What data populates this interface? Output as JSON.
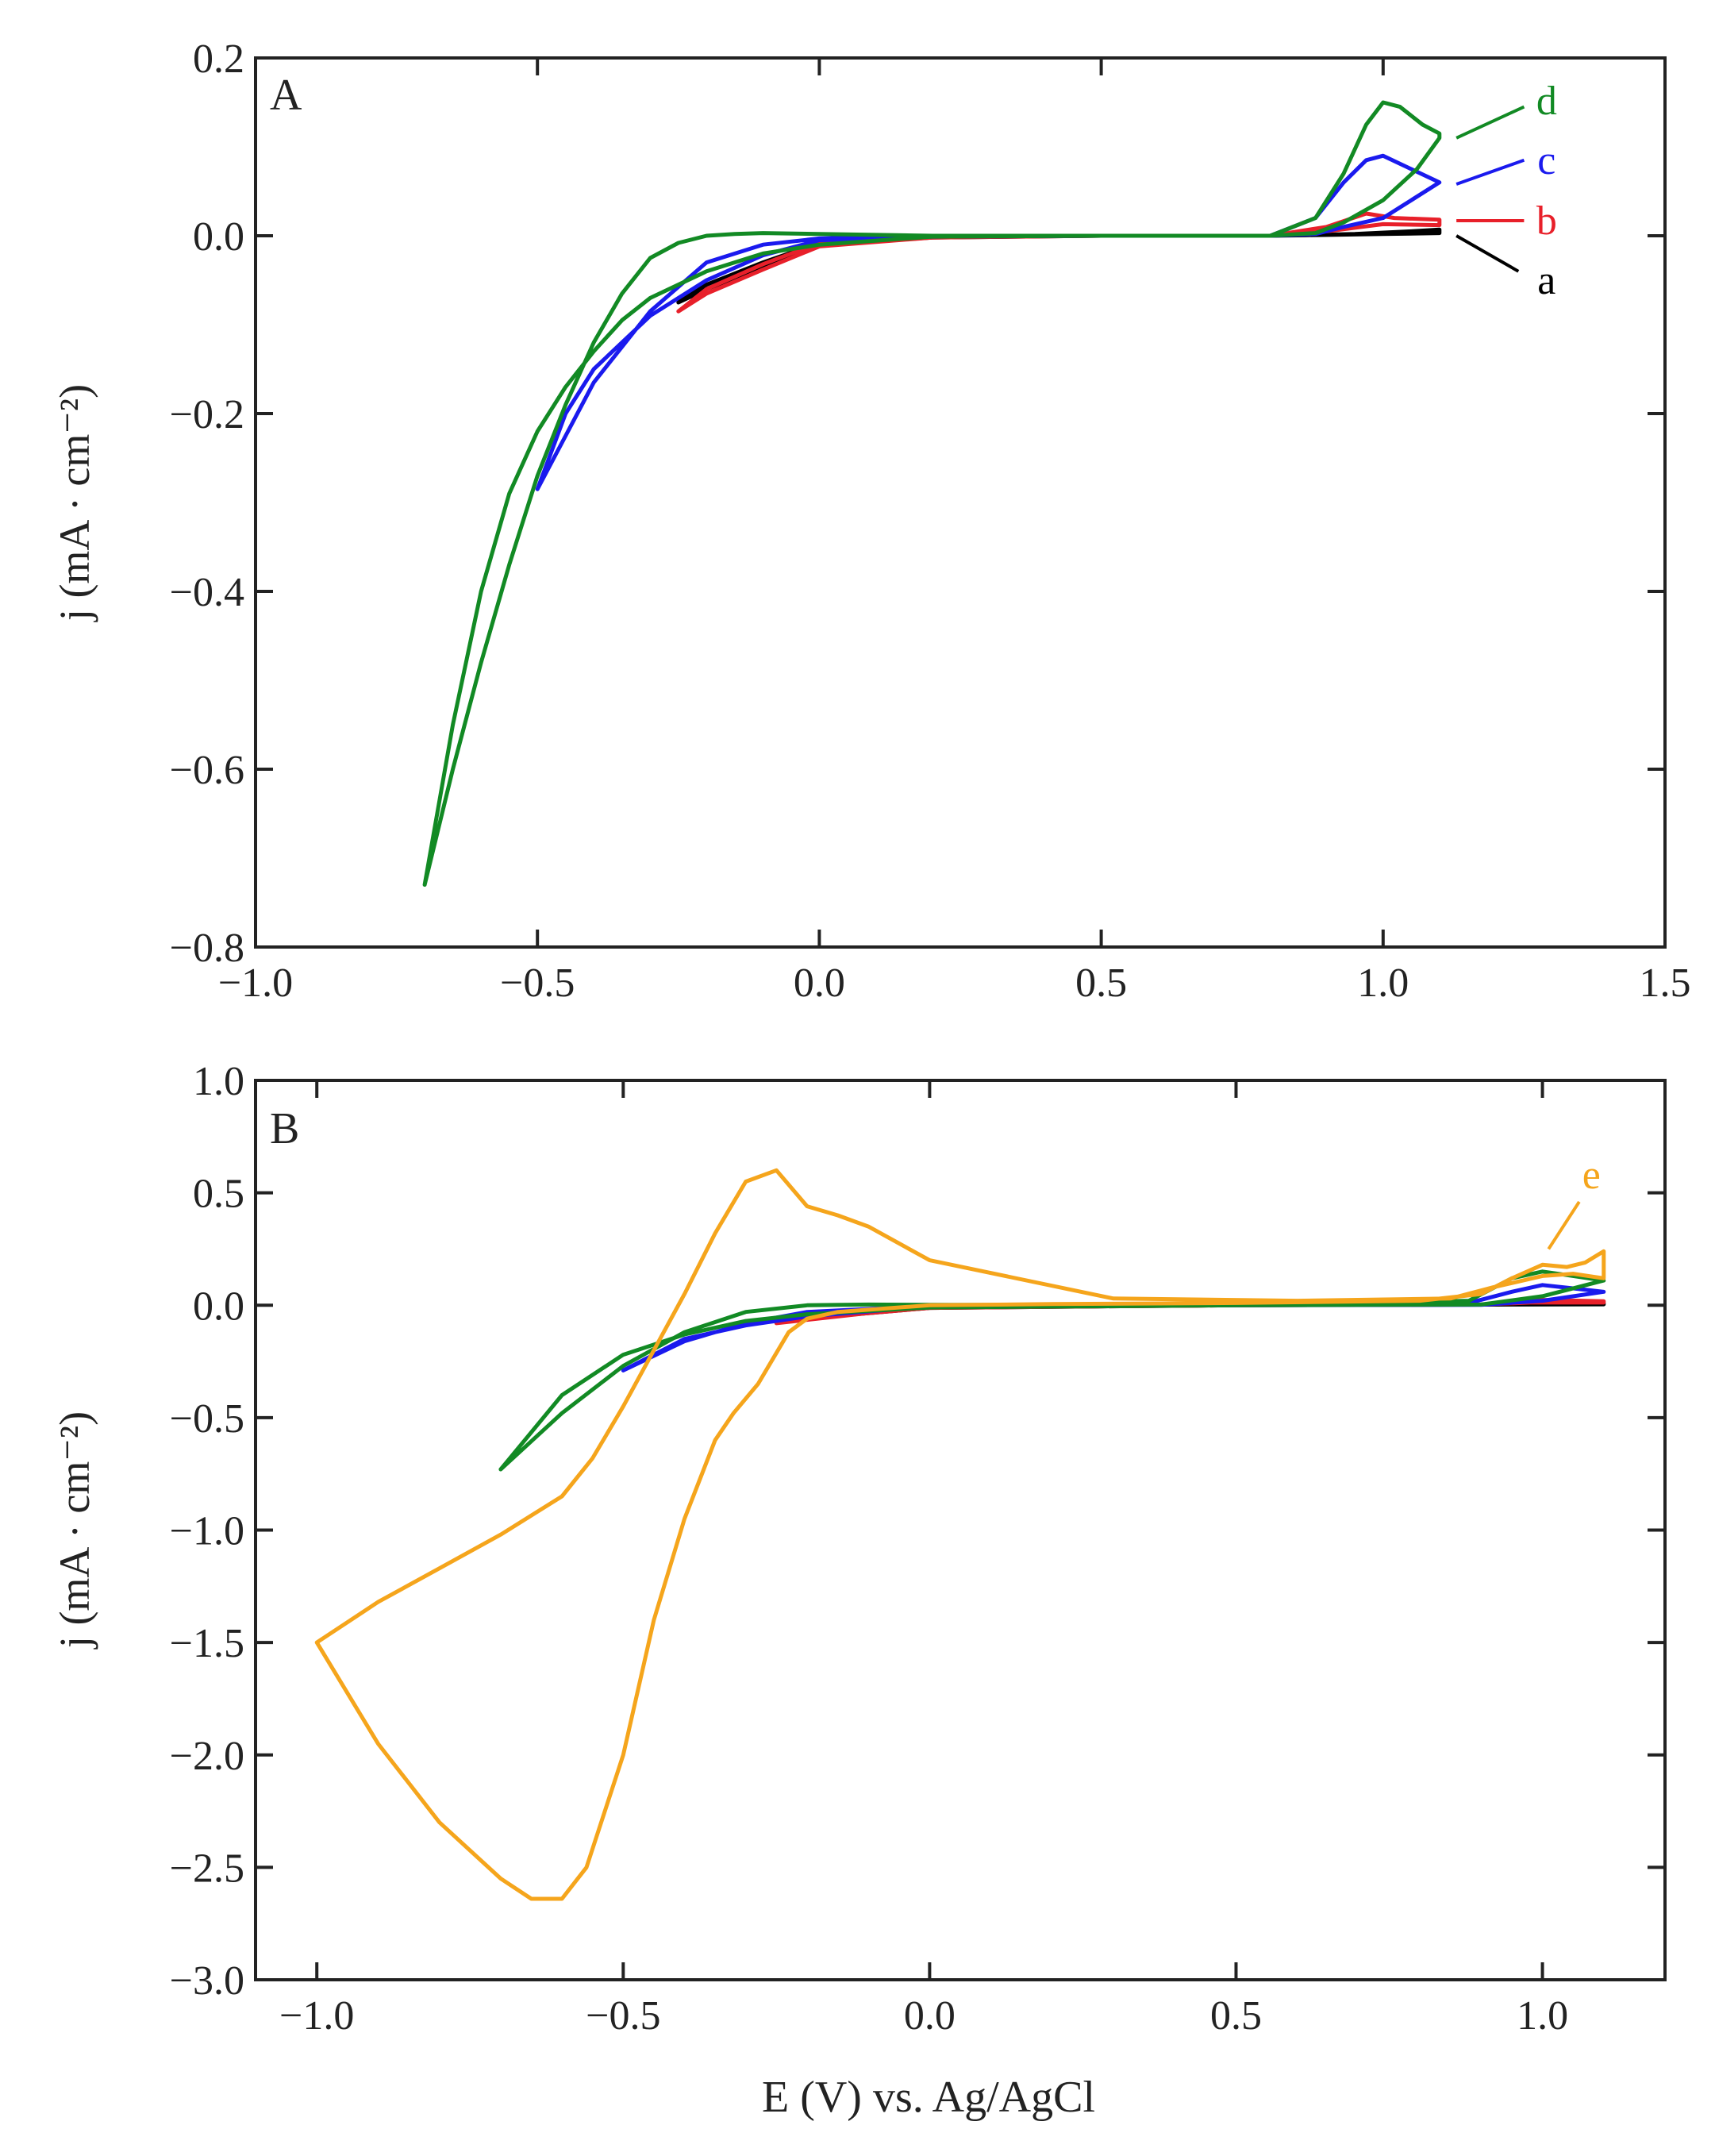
{
  "colors": {
    "a": "#000000",
    "b": "#e8202a",
    "c": "#1a1aee",
    "d": "#128a24",
    "e": "#f5a51c",
    "axis": "#222222"
  },
  "chart_data": [
    {
      "type": "line",
      "panel_label": "A",
      "xlabel": "",
      "ylabel": "j (mA · cm⁻²)",
      "xlim": [
        -1.0,
        1.5
      ],
      "ylim": [
        -0.8,
        0.2
      ],
      "xticks": [
        -1.0,
        -0.5,
        0.0,
        0.5,
        1.0,
        1.5
      ],
      "xtick_labels": [
        "−1.0",
        "−0.5",
        "0.0",
        "0.5",
        "1.0",
        "1.5"
      ],
      "yticks": [
        0.2,
        0.0,
        -0.2,
        -0.4,
        -0.6,
        -0.8
      ],
      "ytick_labels": [
        "0.2",
        "0.0",
        "−0.2",
        "−0.4",
        "−0.6",
        "−0.8"
      ],
      "series": [
        {
          "name": "a",
          "color_key": "a",
          "x": [
            -0.25,
            -0.2,
            -0.1,
            0.0,
            0.2,
            0.5,
            0.8,
            0.95,
            1.05,
            1.1,
            1.1,
            1.0,
            0.8,
            0.5,
            0.2,
            0.0,
            -0.1,
            -0.2,
            -0.25
          ],
          "y": [
            -0.075,
            -0.055,
            -0.03,
            -0.008,
            -0.002,
            0.0,
            0.0,
            0.002,
            0.005,
            0.007,
            0.003,
            0.002,
            0.0,
            0.0,
            -0.002,
            -0.01,
            -0.035,
            -0.06,
            -0.075
          ],
          "label": {
            "text": "a",
            "x": 1.29,
            "y": -0.05,
            "line": [
              [
                1.24,
                -0.04
              ],
              [
                1.13,
                0.0
              ]
            ]
          }
        },
        {
          "name": "b",
          "color_key": "b",
          "x": [
            -0.25,
            -0.2,
            -0.1,
            0.0,
            0.2,
            0.5,
            0.8,
            0.9,
            0.97,
            1.02,
            1.1,
            1.1,
            1.0,
            0.9,
            0.8,
            0.5,
            0.2,
            0.0,
            -0.1,
            -0.2,
            -0.25
          ],
          "y": [
            -0.085,
            -0.06,
            -0.032,
            -0.008,
            -0.002,
            0.0,
            0.0,
            0.01,
            0.025,
            0.02,
            0.018,
            0.012,
            0.013,
            0.005,
            0.0,
            0.0,
            -0.002,
            -0.012,
            -0.038,
            -0.065,
            -0.085
          ],
          "label": {
            "text": "b",
            "x": 1.29,
            "y": 0.017,
            "line": [
              [
                1.25,
                0.017
              ],
              [
                1.13,
                0.017
              ]
            ]
          }
        },
        {
          "name": "c",
          "color_key": "c",
          "x": [
            -0.5,
            -0.45,
            -0.4,
            -0.3,
            -0.2,
            -0.1,
            0.0,
            0.2,
            0.5,
            0.8,
            0.88,
            0.93,
            0.97,
            1.0,
            1.05,
            1.1,
            1.1,
            1.05,
            1.0,
            0.93,
            0.88,
            0.8,
            0.5,
            0.2,
            0.0,
            -0.1,
            -0.2,
            -0.3,
            -0.4,
            -0.45,
            -0.5
          ],
          "y": [
            -0.285,
            -0.225,
            -0.165,
            -0.085,
            -0.03,
            -0.01,
            -0.003,
            0.0,
            0.0,
            0.0,
            0.02,
            0.06,
            0.085,
            0.09,
            0.075,
            0.06,
            0.06,
            0.04,
            0.02,
            0.01,
            0.002,
            0.0,
            0.0,
            -0.001,
            -0.005,
            -0.022,
            -0.05,
            -0.09,
            -0.15,
            -0.2,
            -0.285
          ],
          "label": {
            "text": "c",
            "x": 1.29,
            "y": 0.085,
            "line": [
              [
                1.25,
                0.085
              ],
              [
                1.13,
                0.058
              ]
            ]
          }
        },
        {
          "name": "d",
          "color_key": "d",
          "x": [
            -0.7,
            -0.65,
            -0.6,
            -0.55,
            -0.5,
            -0.45,
            -0.4,
            -0.35,
            -0.3,
            -0.25,
            -0.2,
            -0.15,
            -0.1,
            0.0,
            0.2,
            0.5,
            0.8,
            0.88,
            0.93,
            0.97,
            1.0,
            1.03,
            1.07,
            1.1,
            1.1,
            1.06,
            1.0,
            0.93,
            0.88,
            0.8,
            0.5,
            0.2,
            0.0,
            -0.1,
            -0.2,
            -0.3,
            -0.35,
            -0.4,
            -0.45,
            -0.5,
            -0.55,
            -0.6,
            -0.65,
            -0.7
          ],
          "y": [
            -0.73,
            -0.6,
            -0.48,
            -0.37,
            -0.27,
            -0.19,
            -0.12,
            -0.065,
            -0.025,
            -0.008,
            0.0,
            0.002,
            0.003,
            0.002,
            0.0,
            0.0,
            0.0,
            0.02,
            0.07,
            0.125,
            0.15,
            0.145,
            0.125,
            0.115,
            0.11,
            0.075,
            0.04,
            0.015,
            0.003,
            0.0,
            0.0,
            -0.001,
            -0.01,
            -0.02,
            -0.04,
            -0.07,
            -0.095,
            -0.13,
            -0.17,
            -0.22,
            -0.29,
            -0.4,
            -0.55,
            -0.73
          ],
          "label": {
            "text": "d",
            "x": 1.29,
            "y": 0.152,
            "line": [
              [
                1.25,
                0.145
              ],
              [
                1.13,
                0.11
              ]
            ]
          }
        }
      ]
    },
    {
      "type": "line",
      "panel_label": "B",
      "xlabel": "E (V) vs. Ag/AgCl",
      "ylabel": "j (mA · cm⁻²)",
      "xlim": [
        -1.1,
        1.2
      ],
      "ylim": [
        -3.0,
        1.0
      ],
      "xticks": [
        -1.0,
        -0.5,
        0.0,
        0.5,
        1.0
      ],
      "xtick_labels": [
        "−1.0",
        "−0.5",
        "0.0",
        "0.5",
        "1.0"
      ],
      "yticks": [
        1.0,
        0.5,
        0.0,
        -0.5,
        -1.0,
        -1.5,
        -2.0,
        -2.5,
        -3.0
      ],
      "ytick_labels": [
        "1.0",
        "0.5",
        "0.0",
        "−0.5",
        "−1.0",
        "−1.5",
        "−2.0",
        "−2.5",
        "−3.0"
      ],
      "series": [
        {
          "name": "a",
          "color_key": "a",
          "x": [
            -0.25,
            0.0,
            0.5,
            0.9,
            1.1,
            1.1,
            0.5,
            0.0,
            -0.25
          ],
          "y": [
            -0.07,
            -0.01,
            0.0,
            0.003,
            0.008,
            0.004,
            0.0,
            -0.012,
            -0.07
          ]
        },
        {
          "name": "b",
          "color_key": "b",
          "x": [
            -0.25,
            -0.1,
            0.0,
            0.5,
            0.9,
            0.98,
            1.1,
            1.1,
            0.98,
            0.9,
            0.5,
            0.0,
            -0.1,
            -0.25
          ],
          "y": [
            -0.08,
            -0.03,
            -0.01,
            0.0,
            0.003,
            0.025,
            0.018,
            0.012,
            0.012,
            0.003,
            0.0,
            -0.012,
            -0.035,
            -0.08
          ]
        },
        {
          "name": "c",
          "color_key": "c",
          "x": [
            -0.5,
            -0.4,
            -0.3,
            -0.2,
            0.0,
            0.5,
            0.88,
            0.95,
            1.0,
            1.05,
            1.1,
            1.1,
            1.0,
            0.9,
            0.5,
            0.0,
            -0.2,
            -0.3,
            -0.4,
            -0.5
          ],
          "y": [
            -0.29,
            -0.16,
            -0.08,
            -0.03,
            -0.003,
            0.0,
            0.01,
            0.06,
            0.09,
            0.075,
            0.06,
            0.06,
            0.02,
            0.002,
            0.0,
            -0.005,
            -0.05,
            -0.09,
            -0.15,
            -0.29
          ]
        },
        {
          "name": "d",
          "color_key": "d",
          "x": [
            -0.7,
            -0.6,
            -0.5,
            -0.4,
            -0.3,
            -0.2,
            -0.1,
            0.0,
            0.5,
            0.88,
            0.95,
            1.0,
            1.05,
            1.1,
            1.1,
            1.0,
            0.9,
            0.5,
            0.0,
            -0.2,
            -0.3,
            -0.4,
            -0.5,
            -0.6,
            -0.7
          ],
          "y": [
            -0.73,
            -0.48,
            -0.27,
            -0.12,
            -0.03,
            0.0,
            0.003,
            0.002,
            0.0,
            0.02,
            0.12,
            0.15,
            0.13,
            0.11,
            0.11,
            0.04,
            0.003,
            0.0,
            -0.01,
            -0.04,
            -0.07,
            -0.13,
            -0.22,
            -0.4,
            -0.73
          ]
        },
        {
          "name": "e",
          "color_key": "e",
          "x": [
            -1.0,
            -0.9,
            -0.8,
            -0.7,
            -0.65,
            -0.6,
            -0.56,
            -0.5,
            -0.45,
            -0.4,
            -0.35,
            -0.32,
            -0.28,
            -0.23,
            -0.2,
            -0.15,
            -0.1,
            0.0,
            0.2,
            0.5,
            0.8,
            0.9,
            0.95,
            1.0,
            1.04,
            1.07,
            1.1,
            1.1,
            1.05,
            1.0,
            0.92,
            0.85,
            0.6,
            0.3,
            0.0,
            -0.1,
            -0.15,
            -0.2,
            -0.25,
            -0.3,
            -0.35,
            -0.4,
            -0.45,
            -0.5,
            -0.55,
            -0.6,
            -0.7,
            -0.8,
            -0.9,
            -1.0
          ],
          "y": [
            -1.5,
            -1.95,
            -2.3,
            -2.55,
            -2.64,
            -2.64,
            -2.5,
            -2.0,
            -1.4,
            -0.95,
            -0.6,
            -0.48,
            -0.35,
            -0.12,
            -0.06,
            -0.03,
            -0.02,
            0.0,
            0.005,
            0.01,
            0.02,
            0.05,
            0.12,
            0.18,
            0.17,
            0.19,
            0.24,
            0.12,
            0.14,
            0.13,
            0.08,
            0.03,
            0.02,
            0.03,
            0.2,
            0.35,
            0.4,
            0.44,
            0.6,
            0.55,
            0.32,
            0.05,
            -0.2,
            -0.45,
            -0.68,
            -0.85,
            -1.02,
            -1.17,
            -1.32,
            -1.5
          ],
          "label": {
            "text": "e",
            "x": 1.08,
            "y": 0.58,
            "line": [
              [
                1.06,
                0.46
              ],
              [
                1.01,
                0.25
              ]
            ]
          }
        }
      ]
    }
  ]
}
